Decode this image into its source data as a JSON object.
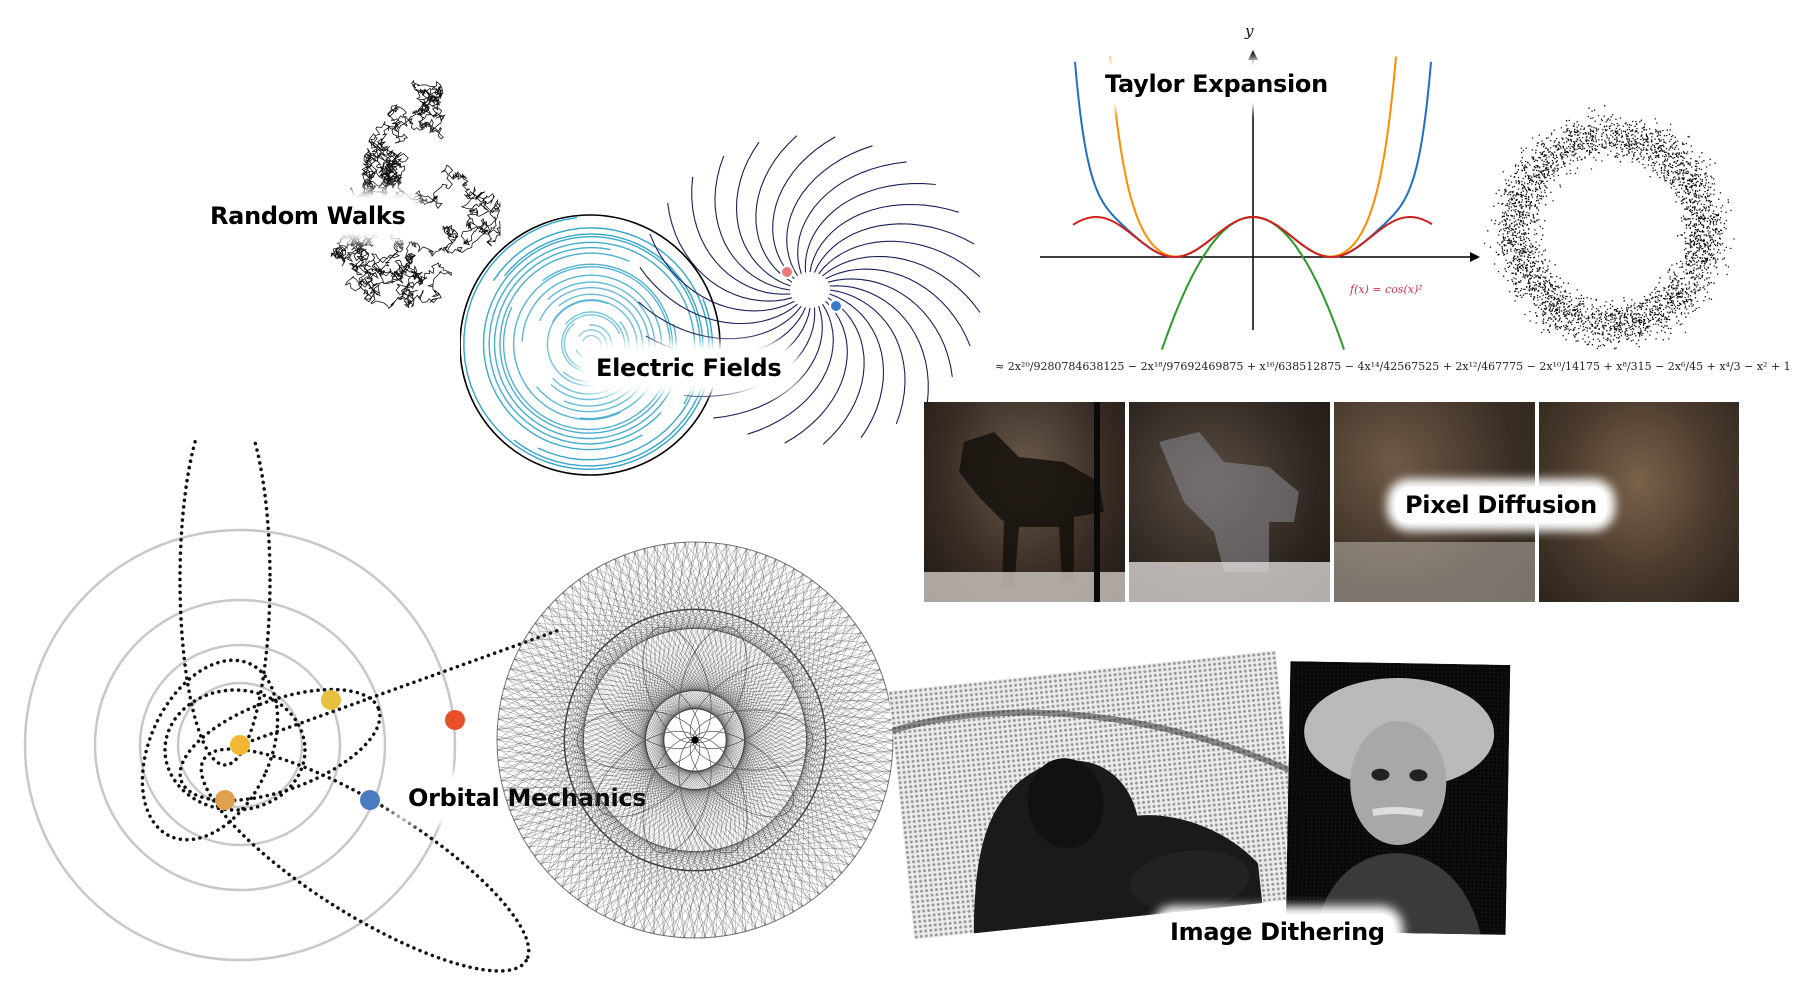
{
  "labels": {
    "random_walks": "Random Walks",
    "electric_fields": "Electric Fields",
    "taylor_expansion": "Taylor Expansion",
    "pixel_diffusion": "Pixel Diffusion",
    "orbital_mechanics": "Orbital Mechanics",
    "image_dithering": "Image Dithering"
  },
  "taylor": {
    "y_axis": "y",
    "function_label": "f(x) = cos(x)²",
    "expansion": "≈ 2x²⁰/9280784638125 − 2x¹⁸/97692469875 + x¹⁶/638512875 − 4x¹⁴/42567525 + 2x¹²/467775 − 2x¹⁰/14175 + x⁸/315 − 2x⁶/45 + x⁴/3 − x² + 1"
  },
  "colors": {
    "field_cyan": "#2aa0c8",
    "field_navy": "#1b1f5a",
    "charge_positive": "#e87a7a",
    "charge_negative": "#3a78c8",
    "taylor_red": "#cc2222",
    "taylor_orange": "#ff8c00",
    "taylor_green": "#2a9a2a",
    "taylor_blue": "#1f6fc0",
    "planet_yellow": "#f2b632",
    "planet_red": "#e8502a",
    "planet_blue": "#4a7ac0",
    "planet_orange": "#e0a050",
    "planet_gold": "#e8c040"
  },
  "icons": {
    "charge_positive": "positive-charge-icon",
    "charge_negative": "negative-charge-icon"
  }
}
